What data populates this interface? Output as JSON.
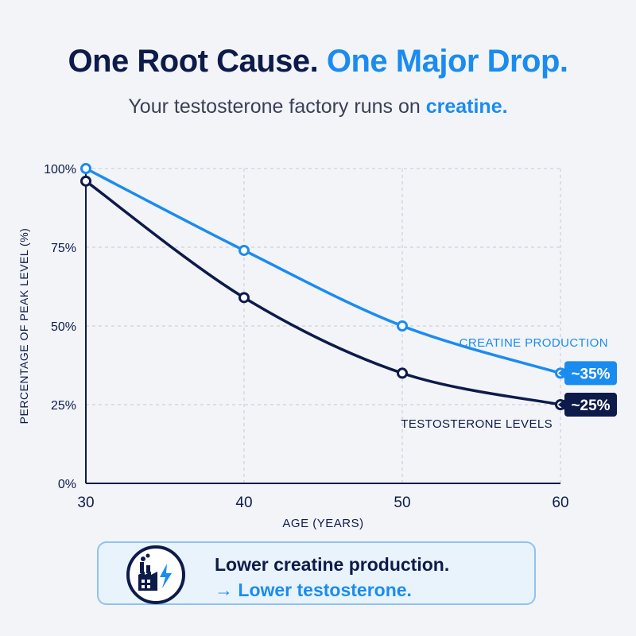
{
  "header": {
    "title_part1": "One Root Cause.",
    "title_part2": "One Major Drop.",
    "subtitle_prefix": "Your testosterone factory runs on ",
    "subtitle_highlight": "creatine."
  },
  "chart_data": {
    "type": "line",
    "title": "",
    "xlabel": "AGE (YEARS)",
    "ylabel": "PERCENTAGE OF PEAK LEVEL (%)",
    "x": [
      30,
      40,
      50,
      60
    ],
    "xlim": [
      30,
      60
    ],
    "ylim": [
      0,
      100
    ],
    "x_ticks": [
      "30",
      "40",
      "50",
      "60"
    ],
    "y_ticks": [
      "0%",
      "25%",
      "50%",
      "75%",
      "100%"
    ],
    "y_tick_values": [
      0,
      25,
      50,
      75,
      100
    ],
    "grid": true,
    "series": [
      {
        "name": "CREATINE PRODUCTION",
        "values": [
          100,
          74,
          50,
          35
        ],
        "end_label": "~35%",
        "color": "#1a8cf0"
      },
      {
        "name": "TESTOSTERONE LEVELS",
        "values": [
          96,
          59,
          35,
          25
        ],
        "end_label": "~25%",
        "color": "#0d1b4a"
      }
    ]
  },
  "callout": {
    "icon": "factory-bolt-icon",
    "line1": "Lower creatine production.",
    "line2": "→ Lower testosterone."
  }
}
